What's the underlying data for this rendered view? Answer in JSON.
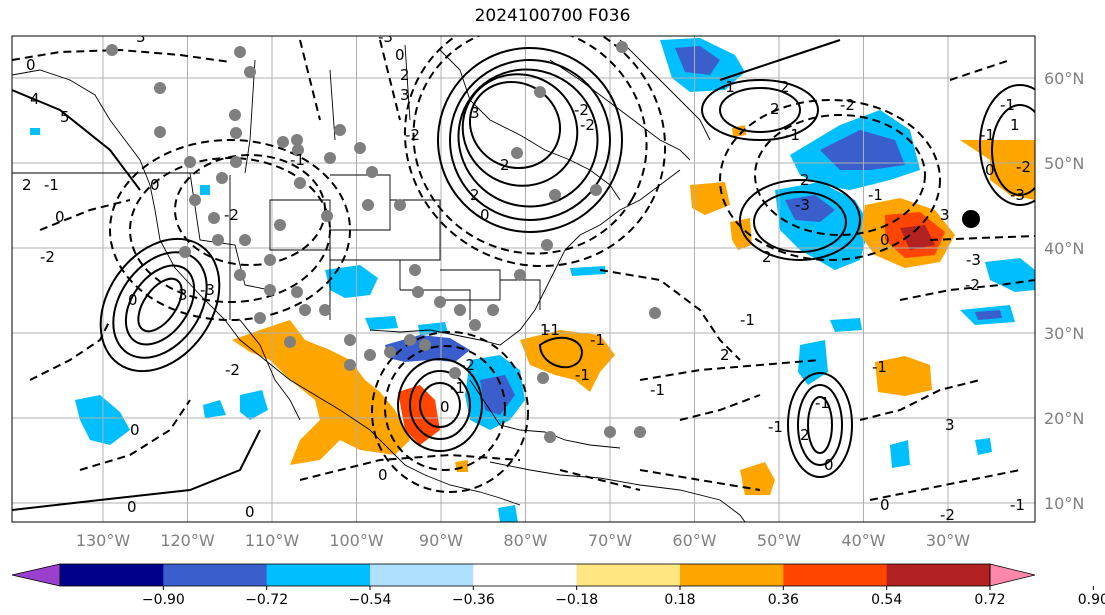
{
  "title": "2024100700 F036",
  "map": {
    "projection": "PlateCarree",
    "extent_lon": [
      -137,
      -16
    ],
    "extent_lat": [
      6,
      64.5
    ],
    "lon_ticks": [
      "130°W",
      "120°W",
      "110°W",
      "100°W",
      "90°W",
      "80°W",
      "70°W",
      "60°W",
      "50°W",
      "40°W",
      "30°W"
    ],
    "lat_ticks": [
      "60°N",
      "50°N",
      "40°N",
      "30°N",
      "20°N",
      "10°N"
    ],
    "gridlines": true,
    "coastlines": true,
    "state_borders": true,
    "solid_contours": "positive values",
    "dashed_contours": "negative values",
    "gray_dots": "station markers",
    "black_dot": "marker near 27°W 43°N"
  },
  "colorbar": {
    "orientation": "horizontal",
    "extend": "both",
    "tick_labels": [
      "−0.90",
      "−0.72",
      "−0.54",
      "−0.36",
      "−0.18",
      "0.18",
      "0.36",
      "0.54",
      "0.72",
      "0.90"
    ],
    "colors": [
      "#9b3fcf",
      "#00008b",
      "#3a5fcd",
      "#00bfff",
      "#b0e0ff",
      "#ffffff",
      "#ffe680",
      "#ffa500",
      "#ff4500",
      "#b22222",
      "#ff88aa"
    ]
  },
  "contour_labels": [
    "0",
    "3",
    "5",
    "4",
    "2",
    "0",
    "-2",
    "-1",
    "0",
    "-2",
    "0",
    "3",
    "-3",
    "-2",
    "-1",
    "0",
    "3",
    "-2",
    "-3",
    "2",
    "-2",
    "3",
    "2",
    "0",
    "2",
    "-2",
    "-1",
    "-1",
    "2",
    "-3",
    "2",
    "-1",
    "0",
    "-1",
    "2",
    "-1",
    "-2",
    "-1",
    "2",
    "-1",
    "0",
    "1",
    "-1",
    "-2",
    "-3",
    "0",
    "-3",
    "3",
    "-2",
    "-1",
    "3",
    "-1",
    "-2",
    "0",
    "-1",
    "-1",
    "0",
    "0",
    "0",
    "-1",
    "0",
    "-2",
    "-1",
    "2",
    "0",
    "-1",
    "2",
    "1"
  ]
}
